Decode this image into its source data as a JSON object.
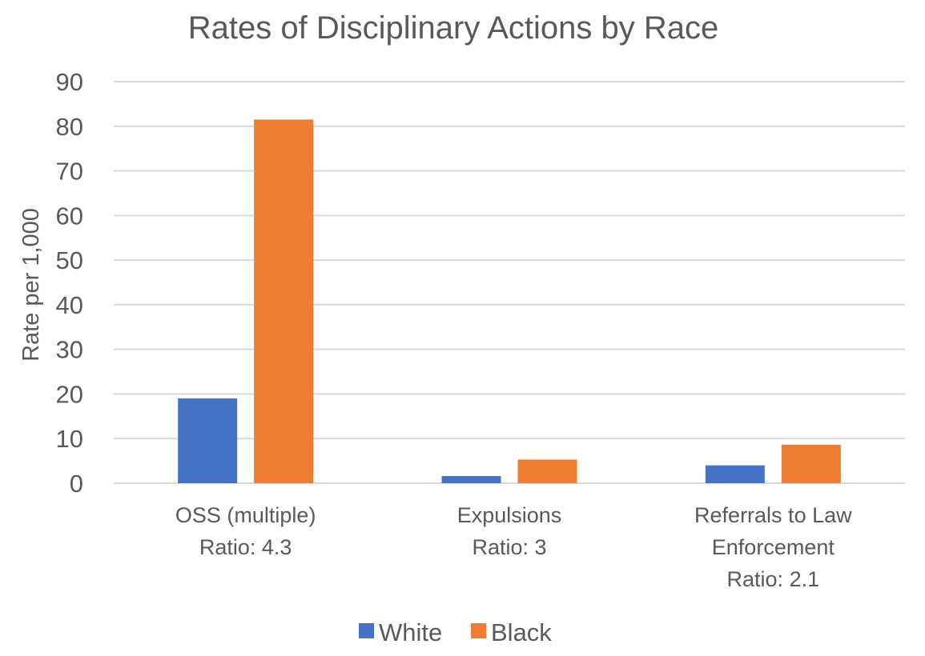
{
  "chart_data": {
    "type": "bar",
    "title": "Rates of Disciplinary Actions by Race",
    "ylabel": "Rate per 1,000",
    "xlabel": "",
    "ylim": [
      0,
      90
    ],
    "yticks": [
      0,
      10,
      20,
      30,
      40,
      50,
      60,
      70,
      80,
      90
    ],
    "grid": true,
    "legend_position": "bottom",
    "categories": [
      [
        "OSS (multiple)",
        "Ratio: 4.3"
      ],
      [
        "Expulsions",
        "Ratio: 3"
      ],
      [
        "Referrals to Law",
        "Enforcement",
        "Ratio: 2.1"
      ]
    ],
    "series": [
      {
        "name": "White",
        "color": "#4472c4",
        "values": [
          19,
          1.6,
          4
        ]
      },
      {
        "name": "Black",
        "color": "#ed7d31",
        "values": [
          81.5,
          5.3,
          8.6
        ]
      }
    ]
  }
}
